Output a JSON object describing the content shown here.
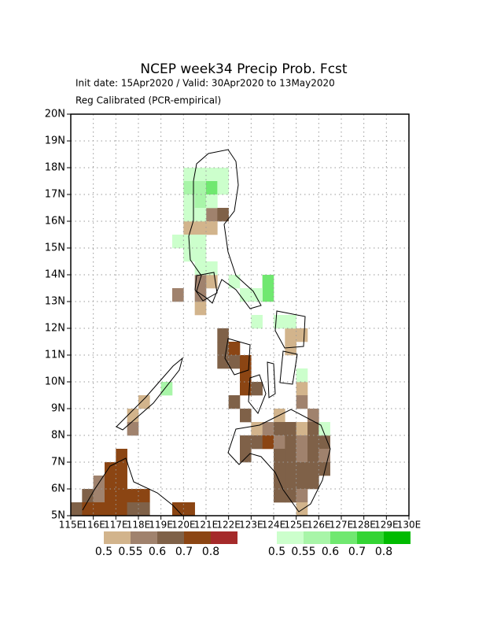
{
  "chart_data": {
    "type": "gridmap",
    "title": "NCEP week34 Precip Prob. Fcst",
    "subtitle": "Init date: 15Apr2020 / Valid: 30Apr2020 to 13May2020",
    "note": "Reg Calibrated (PCR-empirical)",
    "xlim": [
      115,
      130
    ],
    "ylim": [
      5,
      20
    ],
    "xticks": [
      {
        "value": 115,
        "label": "115E"
      },
      {
        "value": 116,
        "label": "116E"
      },
      {
        "value": 117,
        "label": "117E"
      },
      {
        "value": 118,
        "label": "118E"
      },
      {
        "value": 119,
        "label": "119E"
      },
      {
        "value": 120,
        "label": "120E"
      },
      {
        "value": 121,
        "label": "121E"
      },
      {
        "value": 122,
        "label": "122E"
      },
      {
        "value": 123,
        "label": "123E"
      },
      {
        "value": 124,
        "label": "124E"
      },
      {
        "value": 125,
        "label": "125E"
      },
      {
        "value": 126,
        "label": "126E"
      },
      {
        "value": 127,
        "label": "127E"
      },
      {
        "value": 128,
        "label": "128E"
      },
      {
        "value": 129,
        "label": "129E"
      },
      {
        "value": 130,
        "label": "130E"
      }
    ],
    "yticks": [
      {
        "value": 5,
        "label": "5N"
      },
      {
        "value": 6,
        "label": "6N"
      },
      {
        "value": 7,
        "label": "7N"
      },
      {
        "value": 8,
        "label": "8N"
      },
      {
        "value": 9,
        "label": "9N"
      },
      {
        "value": 10,
        "label": "10N"
      },
      {
        "value": 11,
        "label": "11N"
      },
      {
        "value": 12,
        "label": "12N"
      },
      {
        "value": 13,
        "label": "13N"
      },
      {
        "value": 14,
        "label": "14N"
      },
      {
        "value": 15,
        "label": "15N"
      },
      {
        "value": 16,
        "label": "16N"
      },
      {
        "value": 17,
        "label": "17N"
      },
      {
        "value": 18,
        "label": "18N"
      },
      {
        "value": 19,
        "label": "19N"
      },
      {
        "value": 20,
        "label": "20N"
      }
    ],
    "grid": true,
    "cell_size": 0.5,
    "dry_legend": {
      "levels": [
        0.5,
        0.55,
        0.6,
        0.7,
        0.8
      ],
      "colors": [
        "#d2b48c",
        "#a0826d",
        "#7f6148",
        "#8b4513",
        "#a52a2a"
      ]
    },
    "wet_legend": {
      "levels": [
        0.5,
        0.55,
        0.6,
        0.7,
        0.8
      ],
      "colors": [
        "#ccffcc",
        "#a8f5a8",
        "#70e870",
        "#33d433",
        "#00bb00"
      ]
    },
    "dry_cells": [
      [
        121,
        16,
        0.55
      ],
      [
        121.5,
        16,
        0.6
      ],
      [
        120,
        15.5,
        0.5
      ],
      [
        120.5,
        15.5,
        0.5
      ],
      [
        121,
        15.5,
        0.5
      ],
      [
        121,
        13.5,
        0.5
      ],
      [
        120.5,
        13.5,
        0.55
      ],
      [
        119.5,
        13,
        0.55
      ],
      [
        120.5,
        12.5,
        0.5
      ],
      [
        120.5,
        13,
        0.55
      ],
      [
        121.5,
        10.5,
        0.6
      ],
      [
        121.5,
        11,
        0.6
      ],
      [
        121.5,
        11.5,
        0.6
      ],
      [
        122,
        11,
        0.7
      ],
      [
        122,
        10.5,
        0.6
      ],
      [
        122.5,
        10,
        0.7
      ],
      [
        122.5,
        10.5,
        0.7
      ],
      [
        122.5,
        9.5,
        0.7
      ],
      [
        123,
        9.5,
        0.6
      ],
      [
        122,
        9,
        0.6
      ],
      [
        122.5,
        8.5,
        0.6
      ],
      [
        124.5,
        11,
        0.5
      ],
      [
        124.5,
        11.5,
        0.5
      ],
      [
        125,
        11.5,
        0.5
      ],
      [
        125,
        9.5,
        0.5
      ],
      [
        125,
        9,
        0.55
      ],
      [
        125.5,
        8.5,
        0.55
      ],
      [
        124,
        8.5,
        0.5
      ],
      [
        123,
        8,
        0.5
      ],
      [
        123.5,
        8,
        0.55
      ],
      [
        124,
        8,
        0.6
      ],
      [
        124.5,
        8,
        0.6
      ],
      [
        125,
        8,
        0.5
      ],
      [
        125.5,
        8,
        0.6
      ],
      [
        122.5,
        7.5,
        0.6
      ],
      [
        123,
        7.5,
        0.6
      ],
      [
        123.5,
        7.5,
        0.7
      ],
      [
        124,
        7.5,
        0.55
      ],
      [
        124.5,
        7.5,
        0.6
      ],
      [
        125,
        7.5,
        0.55
      ],
      [
        125.5,
        7.5,
        0.6
      ],
      [
        126,
        7.5,
        0.6
      ],
      [
        122.5,
        7,
        0.6
      ],
      [
        124,
        7,
        0.6
      ],
      [
        124.5,
        7,
        0.6
      ],
      [
        125,
        7,
        0.55
      ],
      [
        125.5,
        7,
        0.6
      ],
      [
        126,
        7,
        0.55
      ],
      [
        124,
        6.5,
        0.6
      ],
      [
        124.5,
        6.5,
        0.6
      ],
      [
        125,
        6.5,
        0.6
      ],
      [
        125.5,
        6.5,
        0.6
      ],
      [
        126,
        6.5,
        0.6
      ],
      [
        124,
        6,
        0.6
      ],
      [
        124.5,
        6,
        0.6
      ],
      [
        125,
        6,
        0.6
      ],
      [
        125.5,
        6,
        0.6
      ],
      [
        124,
        5.5,
        0.6
      ],
      [
        124.5,
        5.5,
        0.6
      ],
      [
        125,
        5.5,
        0.55
      ],
      [
        125,
        5,
        0.5
      ],
      [
        118,
        9,
        0.5
      ],
      [
        117.5,
        8.5,
        0.5
      ],
      [
        117.5,
        8,
        0.55
      ],
      [
        117,
        7,
        0.7
      ],
      [
        117,
        6.5,
        0.7
      ],
      [
        116.5,
        6.5,
        0.7
      ],
      [
        116,
        6,
        0.55
      ],
      [
        116.5,
        6,
        0.7
      ],
      [
        117,
        6,
        0.7
      ],
      [
        115.5,
        5.5,
        0.6
      ],
      [
        116,
        5.5,
        0.55
      ],
      [
        116.5,
        5.5,
        0.7
      ],
      [
        117,
        5.5,
        0.7
      ],
      [
        117.5,
        5.5,
        0.7
      ],
      [
        118,
        5.5,
        0.7
      ],
      [
        115,
        5,
        0.6
      ],
      [
        115.5,
        5,
        0.7
      ],
      [
        116,
        5,
        0.7
      ],
      [
        116.5,
        5,
        0.7
      ],
      [
        117,
        5,
        0.7
      ],
      [
        117.5,
        5,
        0.6
      ],
      [
        118,
        5,
        0.6
      ],
      [
        119.5,
        5,
        0.7
      ],
      [
        120,
        5,
        0.7
      ]
    ],
    "wet_cells": [
      [
        120,
        17.5,
        0.5
      ],
      [
        120.5,
        17.5,
        0.5
      ],
      [
        121,
        17.5,
        0.5
      ],
      [
        121.5,
        17.5,
        0.5
      ],
      [
        120,
        17,
        0.55
      ],
      [
        120.5,
        17,
        0.55
      ],
      [
        121,
        17,
        0.6
      ],
      [
        121.5,
        17,
        0.5
      ],
      [
        120,
        16.5,
        0.5
      ],
      [
        120.5,
        16.5,
        0.55
      ],
      [
        121,
        16.5,
        0.5
      ],
      [
        120,
        16,
        0.5
      ],
      [
        120.5,
        16,
        0.5
      ],
      [
        119.5,
        15,
        0.5
      ],
      [
        120,
        15,
        0.5
      ],
      [
        120.5,
        15,
        0.5
      ],
      [
        120,
        14.5,
        0.5
      ],
      [
        120.5,
        14.5,
        0.5
      ],
      [
        120.5,
        14,
        0.5
      ],
      [
        121,
        14,
        0.5
      ],
      [
        122,
        13.5,
        0.5
      ],
      [
        122.5,
        13,
        0.5
      ],
      [
        123.5,
        13,
        0.6
      ],
      [
        123.5,
        13.5,
        0.6
      ],
      [
        123,
        13,
        0.5
      ],
      [
        123,
        12,
        0.5
      ],
      [
        124,
        12,
        0.5
      ],
      [
        124.5,
        12,
        0.5
      ],
      [
        125,
        10,
        0.5
      ],
      [
        119,
        9.5,
        0.55
      ],
      [
        126,
        8,
        0.5
      ]
    ]
  }
}
